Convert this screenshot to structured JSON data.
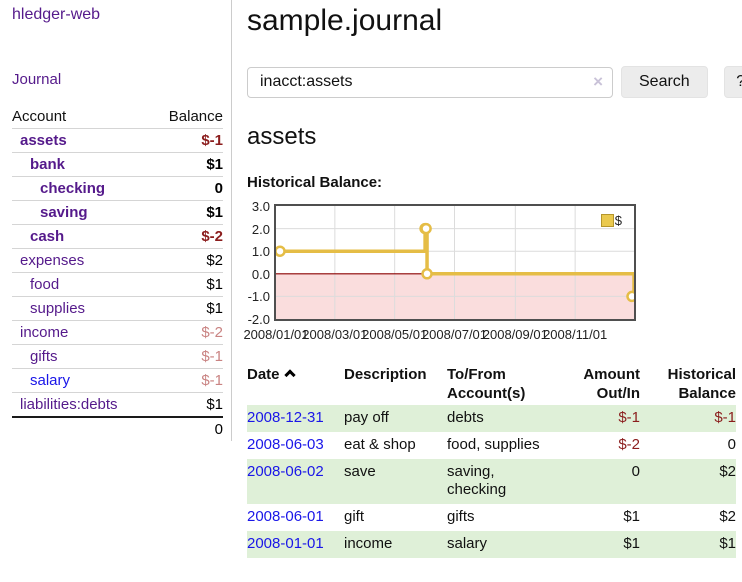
{
  "app": {
    "title": "hledger-web"
  },
  "colors": {
    "link_purple": "#551a8b",
    "link_blue": "#1a16e8",
    "neg_strong": "#8b1d1d",
    "neg_dim": "#c98382",
    "row_green": "#dff0d8",
    "chart_line": "#e5bd46",
    "chart_neg_fill": "#fadddd",
    "zero_line": "#8b0000",
    "grid": "#dcdcdc",
    "border_dark": "#4f4f4f"
  },
  "sidebar": {
    "journal_label": "Journal",
    "accounts": {
      "headers": {
        "account": "Account",
        "balance": "Balance"
      },
      "rows": [
        {
          "name": "assets",
          "balance": "$-1",
          "indent": 1,
          "bold": true,
          "negative": "strong"
        },
        {
          "name": "bank",
          "balance": "$1",
          "indent": 2,
          "bold": true
        },
        {
          "name": "checking",
          "balance": "0",
          "indent": 3,
          "bold": true
        },
        {
          "name": "saving",
          "balance": "$1",
          "indent": 3,
          "bold": true
        },
        {
          "name": "cash",
          "balance": "$-2",
          "indent": 2,
          "bold": true,
          "negative": "strong"
        },
        {
          "name": "expenses",
          "balance": "$2",
          "indent": 1
        },
        {
          "name": "food",
          "balance": "$1",
          "indent": 2
        },
        {
          "name": "supplies",
          "balance": "$1",
          "indent": 2
        },
        {
          "name": "income",
          "balance": "$-2",
          "indent": 1,
          "negative": "dim"
        },
        {
          "name": "gifts",
          "balance": "$-1",
          "indent": 2,
          "negative": "dim"
        },
        {
          "name": "salary",
          "balance": "$-1",
          "indent": 2,
          "negative": "dim",
          "link_color": "blue"
        },
        {
          "name": "liabilities:debts",
          "balance": "$1",
          "indent": 1
        }
      ],
      "total": "0"
    }
  },
  "main": {
    "title": "sample.journal",
    "search": {
      "value": "inacct:assets",
      "clear_icon": "×",
      "search_label": "Search",
      "help_label": "?"
    },
    "account_heading": "assets",
    "register": {
      "headers": {
        "date": "Date",
        "description": "Description",
        "accounts": "To/From Account(s)",
        "amount": "Amount Out/In",
        "balance": "Historical Balance"
      },
      "rows": [
        {
          "date": "2008-12-31",
          "description": "pay off",
          "accounts": "debts",
          "amount": "$-1",
          "balance": "$-1",
          "amount_negative": true,
          "balance_negative": true
        },
        {
          "date": "2008-06-03",
          "description": "eat & shop",
          "accounts": "food, supplies",
          "amount": "$-2",
          "balance": "0",
          "amount_negative": true
        },
        {
          "date": "2008-06-02",
          "description": "save",
          "accounts": "saving, checking",
          "amount": "0",
          "balance": "$2"
        },
        {
          "date": "2008-06-01",
          "description": "gift",
          "accounts": "gifts",
          "amount": "$1",
          "balance": "$2"
        },
        {
          "date": "2008-01-01",
          "description": "income",
          "accounts": "salary",
          "amount": "$1",
          "balance": "$1"
        }
      ]
    }
  },
  "chart_data": {
    "type": "line",
    "title": "Historical Balance:",
    "legend": "$",
    "ylim": [
      -2,
      3
    ],
    "x_max_day": 365,
    "grid": true,
    "negative_region_shaded": true,
    "y_ticks": [
      "3.0",
      "2.0",
      "1.0",
      "0.0",
      "-1.0",
      "-2.0"
    ],
    "x_ticks": [
      {
        "label": "2008/01/01",
        "day": 0
      },
      {
        "label": "2008/03/01",
        "day": 60
      },
      {
        "label": "2008/05/01",
        "day": 121
      },
      {
        "label": "2008/07/01",
        "day": 182
      },
      {
        "label": "2008/09/01",
        "day": 244
      },
      {
        "label": "2008/11/01",
        "day": 305
      }
    ],
    "series": [
      {
        "name": "$",
        "points": [
          {
            "date": "2008-01-01",
            "day": 0,
            "value": 1
          },
          {
            "date": "2008-06-01",
            "day": 152,
            "value": 2
          },
          {
            "date": "2008-06-02",
            "day": 153,
            "value": 2
          },
          {
            "date": "2008-06-03",
            "day": 154,
            "value": 0
          },
          {
            "date": "2008-12-31",
            "day": 365,
            "value": -1
          }
        ]
      }
    ]
  }
}
